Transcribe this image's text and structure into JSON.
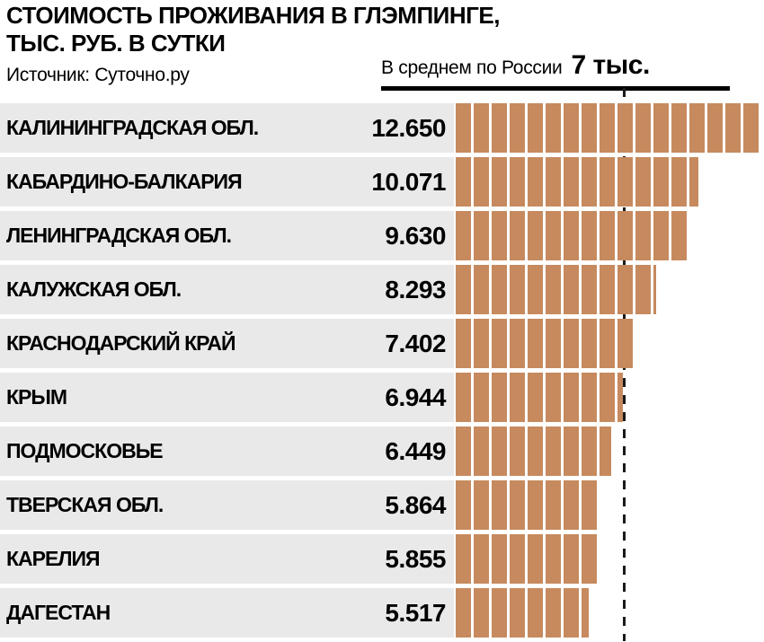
{
  "colors": {
    "bar": "#c68a5e",
    "row_background": "#e9e9e9",
    "text": "#000000"
  },
  "header": {
    "title_line1": "СТОИМОСТЬ ПРОЖИВАНИЯ В ГЛЭМПИНГЕ,",
    "title_line2": "ТЫС. РУБ. В СУТКИ",
    "source": "Источник: Суточно.ру",
    "average_label": "В среднем по России",
    "average_value": "7 тыс."
  },
  "chart_data": {
    "type": "bar",
    "orientation": "horizontal",
    "title": "СТОИМОСТЬ ПРОЖИВАНИЯ В ГЛЭМПИНГЕ, ТЫС. РУБ. В СУТКИ",
    "source": "Источник: Суточно.ру",
    "reference_line": {
      "label": "В среднем по России",
      "value_label": "7 тыс.",
      "value": 7
    },
    "categories": [
      "КАЛИНИНГРАДСКАЯ ОБЛ.",
      "КАБАРДИНО-БАЛКАРИЯ",
      "ЛЕНИНГРАДСКАЯ ОБЛ.",
      "КАЛУЖСКАЯ ОБЛ.",
      "КРАСНОДАРСКИЙ КРАЙ",
      "КРЫМ",
      "ПОДМОСКОВЬЕ",
      "ТВЕРСКАЯ ОБЛ.",
      "КАРЕЛИЯ",
      "ДАГЕСТАН"
    ],
    "values": [
      12.65,
      10.071,
      9.63,
      8.293,
      7.402,
      6.944,
      6.449,
      5.864,
      5.855,
      5.517
    ],
    "value_labels": [
      "12.650",
      "10.071",
      "9.630",
      "8.293",
      "7.402",
      "6.944",
      "6.449",
      "5.864",
      "5.855",
      "5.517"
    ],
    "xlim": [
      0,
      12.7
    ],
    "unit": "тыс. руб. в сутки",
    "grid": false,
    "legend": false,
    "bar_style": "segmented"
  }
}
